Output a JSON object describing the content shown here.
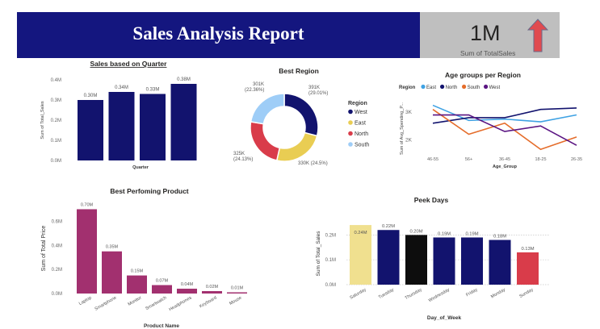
{
  "header": {
    "title": "Sales Analysis Report"
  },
  "kpi": {
    "value": "1M",
    "label": "Sum of TotalSales",
    "trend_icon": "up-arrow-icon",
    "arrow_color": "#e04a4f"
  },
  "colors": {
    "navy": "#12136e",
    "purple": "#a2306f",
    "black": "#0d0d0d",
    "yellow": "#f0e08f",
    "red": "#d93c4a",
    "lightblue": "#9ecdf7",
    "gold": "#e9cd53",
    "orange": "#e56d2b",
    "darkpurple": "#5b1583",
    "blue": "#3fa2e3"
  },
  "chart_data": [
    {
      "id": "quarter",
      "type": "bar",
      "title": "Sales based on Quarter",
      "xlabel": "Quarter",
      "ylabel": "Sum of Total_Sales",
      "categories": [
        "",
        "",
        "",
        ""
      ],
      "values": [
        0.3,
        0.34,
        0.33,
        0.38
      ],
      "data_labels": [
        "0.30M",
        "0.34M",
        "0.33M",
        "0.38M"
      ],
      "yticks": [
        "0.0M",
        "0.1M",
        "0.2M",
        "0.3M",
        "0.4M"
      ],
      "ylim": [
        0,
        0.4
      ],
      "grid": false
    },
    {
      "id": "region",
      "type": "pie",
      "title": "Best Region",
      "legend_title": "Region",
      "legend_position": "right",
      "slices": [
        {
          "name": "West",
          "value": 391,
          "label": "391K",
          "pct": "(29.01%)",
          "color": "#12136e"
        },
        {
          "name": "East",
          "value": 330,
          "label": "330K (24.5%)",
          "pct": "",
          "color": "#e9cd53"
        },
        {
          "name": "North",
          "value": 325,
          "label": "325K",
          "pct": "(24.13%)",
          "color": "#d93c4a"
        },
        {
          "name": "South",
          "value": 301,
          "label": "301K",
          "pct": "(22.36%)",
          "color": "#9ecdf7"
        }
      ]
    },
    {
      "id": "age",
      "type": "line",
      "title": "Age groups per Region",
      "legend_title": "Region",
      "legend_position": "top-left",
      "xlabel": "Age_Group",
      "ylabel": "Sum of Avg_Spending_P...",
      "x": [
        "46-55",
        "56+",
        "36-45",
        "18-25",
        "26-35"
      ],
      "yticks": [
        "2K",
        "3K"
      ],
      "ylim": [
        1600,
        3500
      ],
      "series": [
        {
          "name": "East",
          "color": "#3fa2e3",
          "values": [
            3250,
            2700,
            2750,
            2650,
            2900
          ]
        },
        {
          "name": "North",
          "color": "#12136e",
          "values": [
            2600,
            2800,
            2800,
            3100,
            3150
          ]
        },
        {
          "name": "South",
          "color": "#e56d2b",
          "values": [
            3100,
            2200,
            2600,
            1650,
            2100
          ]
        },
        {
          "name": "West",
          "color": "#5b1583",
          "values": [
            2900,
            2900,
            2300,
            2500,
            1800
          ]
        }
      ]
    },
    {
      "id": "product",
      "type": "bar",
      "title": "Best Perfoming Product",
      "xlabel": "Product Name",
      "ylabel": "Sum of Total Price",
      "categories": [
        "Laptop",
        "Smartphone",
        "Monitor",
        "Smartwatch",
        "Headphones",
        "Keyboard",
        "Mouse"
      ],
      "values": [
        0.7,
        0.35,
        0.15,
        0.07,
        0.04,
        0.02,
        0.01
      ],
      "data_labels": [
        "0.70M",
        "0.35M",
        "0.15M",
        "0.07M",
        "0.04M",
        "0.02M",
        "0.01M"
      ],
      "yticks": [
        "0.0M",
        "0.2M",
        "0.4M",
        "0.6M"
      ],
      "ylim": [
        0,
        0.75
      ],
      "grid": false
    },
    {
      "id": "days",
      "type": "bar",
      "title": "Peek Days",
      "xlabel": "Day_of_Week",
      "ylabel": "Sum of Total_Sales",
      "categories": [
        "Saturday",
        "Tuesday",
        "Thursday",
        "Wednesday",
        "Friday",
        "Monday",
        "Sunday"
      ],
      "values": [
        0.24,
        0.22,
        0.2,
        0.19,
        0.19,
        0.18,
        0.13
      ],
      "data_labels": [
        "0.24M",
        "0.22M",
        "0.20M",
        "0.19M",
        "0.19M",
        "0.18M",
        "0.13M"
      ],
      "bar_colors": [
        "#f0e08f",
        "#12136e",
        "#0d0d0d",
        "#12136e",
        "#12136e",
        "#12136e",
        "#d93c4a"
      ],
      "yticks": [
        "0.0M",
        "0.1M",
        "0.2M"
      ],
      "ylim": [
        0,
        0.25
      ],
      "grid": true
    }
  ]
}
